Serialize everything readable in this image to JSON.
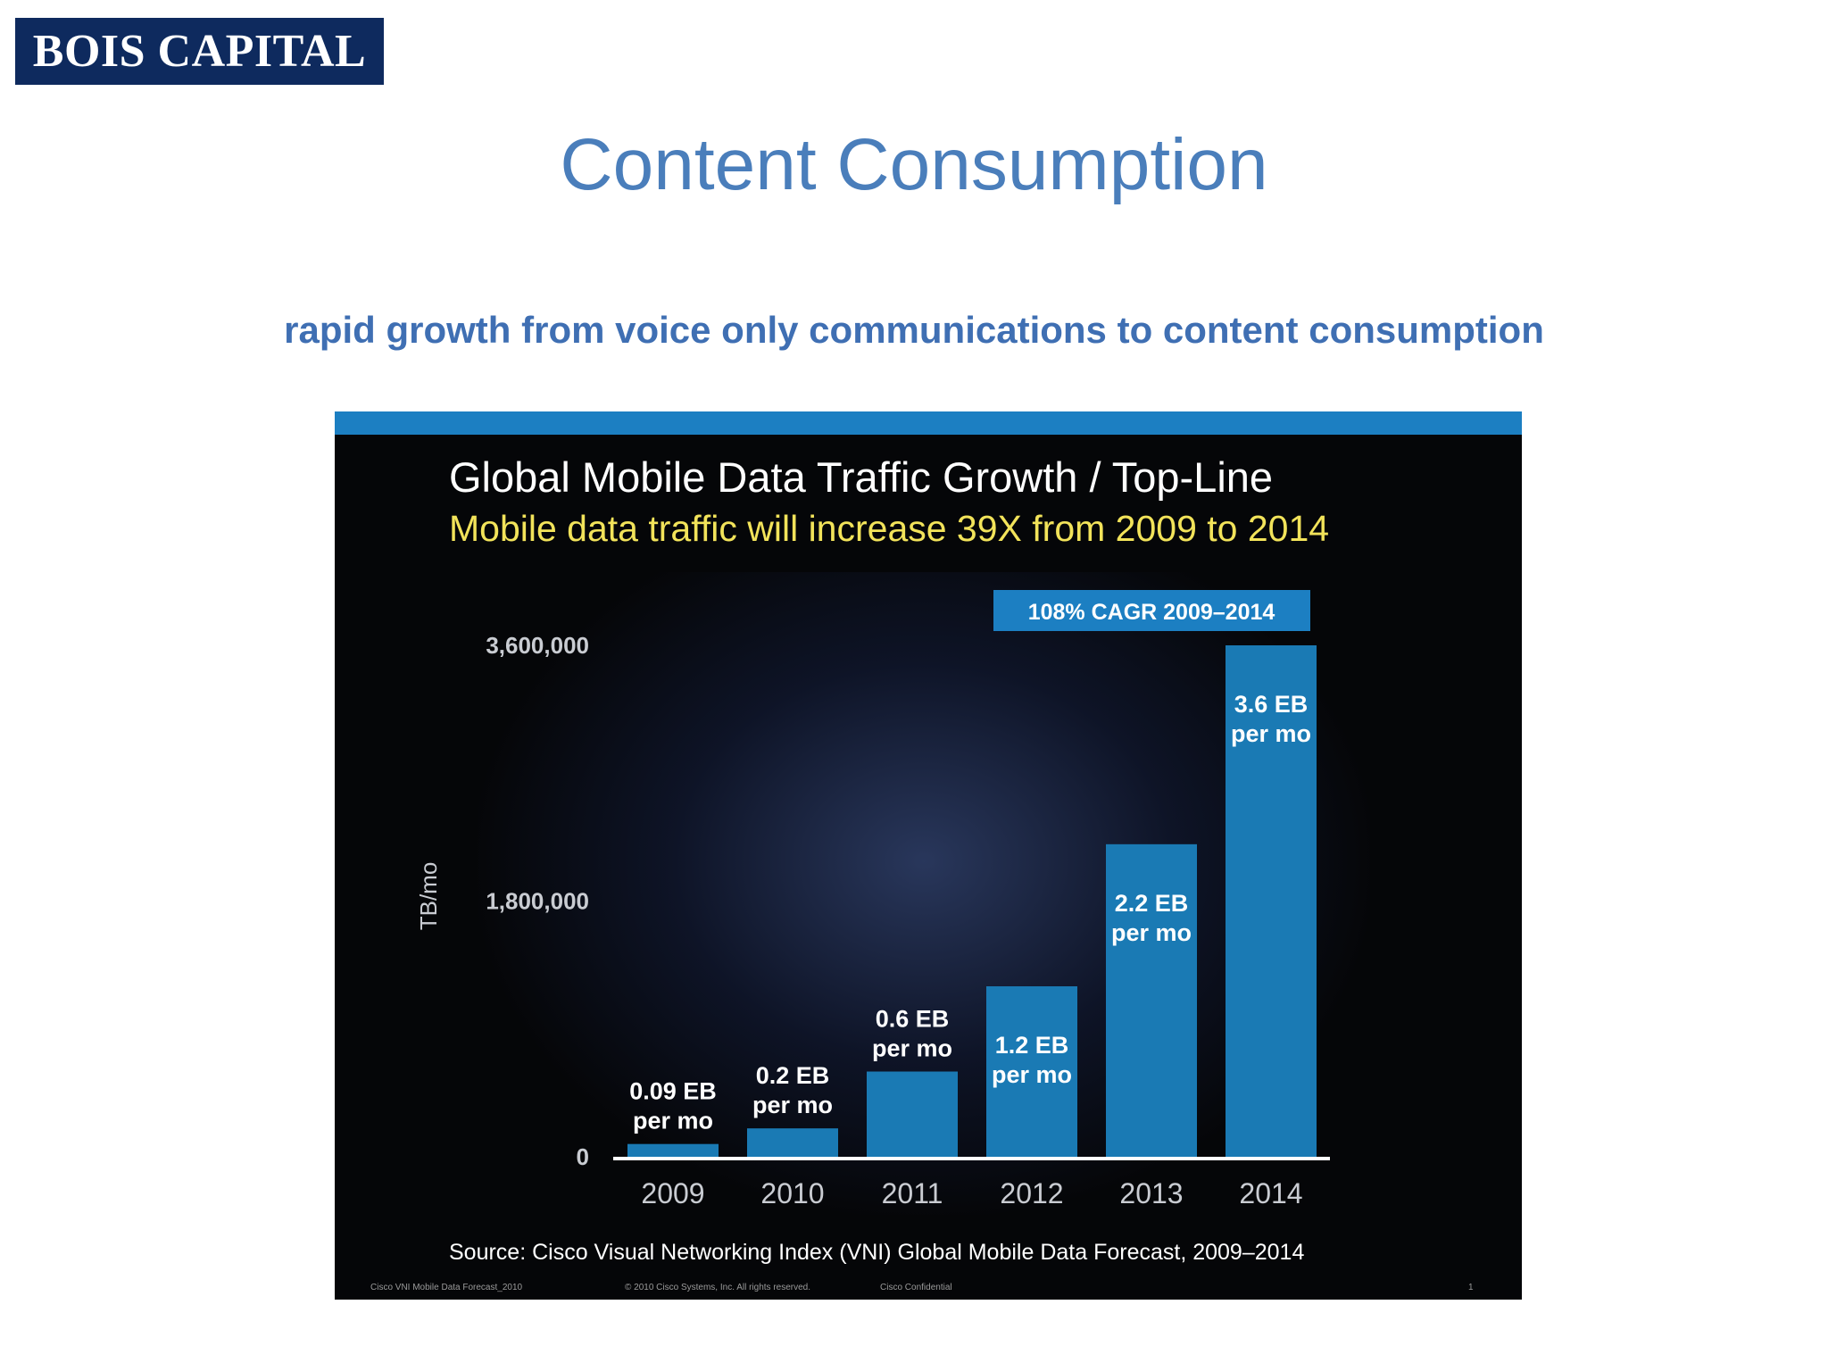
{
  "logo": {
    "text": "BOIS CAPITAL"
  },
  "page": {
    "title": "Content Consumption",
    "subtitle": "rapid growth from voice only communications to content consumption"
  },
  "slide": {
    "title": "Global Mobile Data Traffic Growth / Top-Line",
    "subtitle": "Mobile data traffic will increase 39X from 2009 to 2014",
    "source": "Source: Cisco Visual Networking Index (VNI) Global Mobile Data Forecast, 2009–2014",
    "footer_left": "Cisco VNI Mobile Data Forecast_2010",
    "footer_center": "© 2010 Cisco Systems, Inc. All rights reserved.",
    "footer_conf": "Cisco Confidential",
    "footer_page": "1",
    "colors": {
      "bar": "#1a7ab4",
      "title_bar": "#1c7fc2",
      "subtitle": "#f2e35a",
      "background": "#050608"
    }
  },
  "chart_data": {
    "type": "bar",
    "categories": [
      "2009",
      "2010",
      "2011",
      "2012",
      "2013",
      "2014"
    ],
    "values": [
      90000,
      200000,
      600000,
      1200000,
      2200000,
      3600000
    ],
    "data_labels": [
      [
        "0.09 EB",
        "per mo"
      ],
      [
        "0.2 EB",
        "per mo"
      ],
      [
        "0.6 EB",
        "per mo"
      ],
      [
        "1.2 EB",
        "per mo"
      ],
      [
        "2.2 EB",
        "per mo"
      ],
      [
        "3.6 EB",
        "per mo"
      ]
    ],
    "ylabel": "TB/mo",
    "yticks": [
      "0",
      "1,800,000",
      "3,600,000"
    ],
    "ytick_values": [
      0,
      1800000,
      3600000
    ],
    "ylim": [
      0,
      3600000
    ],
    "annotation": "108% CAGR 2009–2014",
    "grid": false
  }
}
